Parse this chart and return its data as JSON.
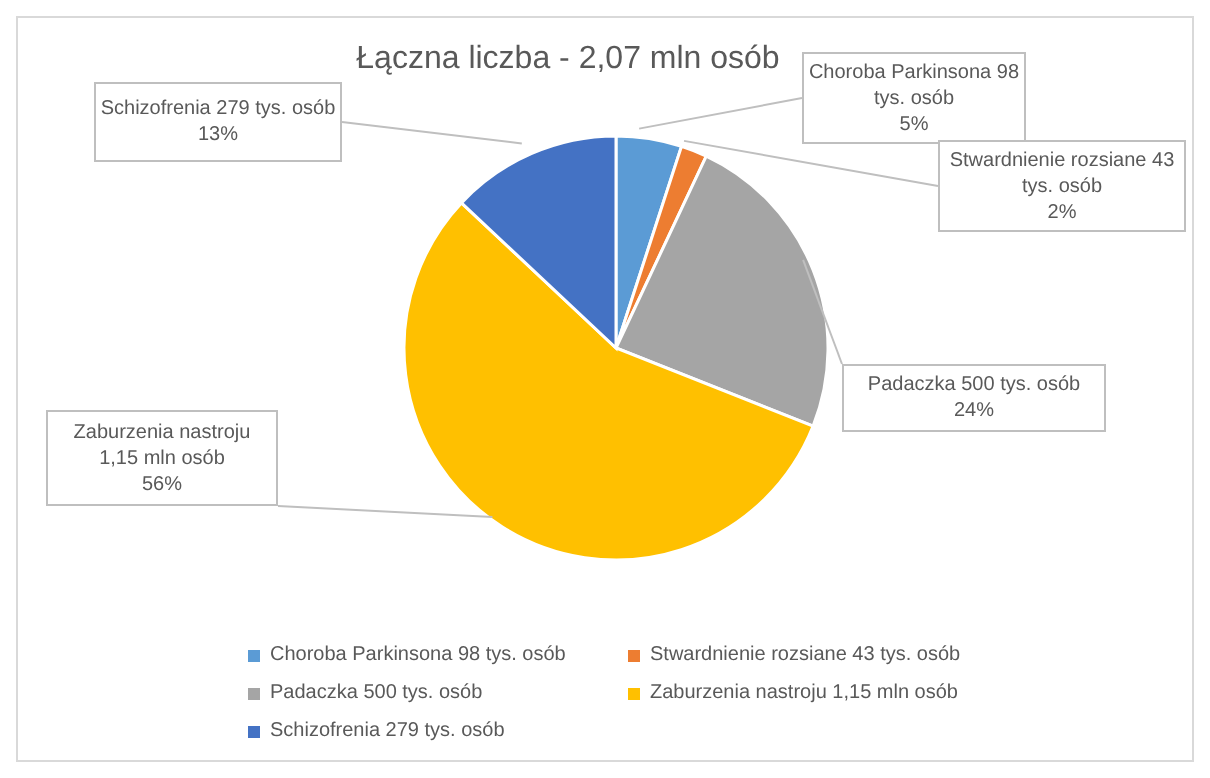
{
  "chart_data": {
    "type": "pie",
    "title": "Łączna liczba - 2,07 mln osób",
    "categories": [
      "Choroba Parkinsona 98 tys. osób",
      "Stwardnienie rozsiane 43 tys. osób",
      "Padaczka 500 tys. osób",
      "Zaburzenia nastroju 1,15 mln osób",
      "Schizofrenia 279 tys. osób"
    ],
    "values": [
      5,
      2,
      24,
      56,
      13
    ],
    "colors": [
      "#5b9bd5",
      "#ed7d31",
      "#a5a5a5",
      "#ffc000",
      "#4472c4"
    ],
    "value_labels": [
      "5%",
      "2%",
      "24%",
      "56%",
      "13%"
    ],
    "legend": "bottom"
  }
}
